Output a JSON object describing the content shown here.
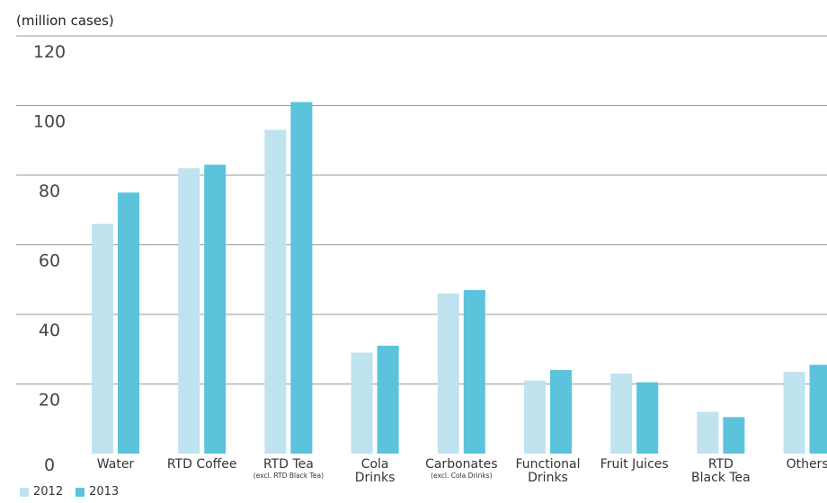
{
  "unit_label": "(million cases)",
  "colors": {
    "s2012": "#bfe3ef",
    "s2013": "#5bc3dc",
    "grid": "#9a9a9a"
  },
  "chart_data": {
    "type": "bar",
    "ylabel": "(million cases)",
    "ylim": [
      0,
      120
    ],
    "yticks": [
      0,
      20,
      40,
      60,
      80,
      100,
      120
    ],
    "grid": true,
    "legend": "bottom-left",
    "categories": [
      {
        "label": "Water",
        "sub": ""
      },
      {
        "label": "RTD Coffee",
        "sub": ""
      },
      {
        "label": "RTD Tea",
        "sub": "(excl. RTD Black Tea)"
      },
      {
        "label": "Cola\nDrinks",
        "sub": ""
      },
      {
        "label": "Carbonates",
        "sub": "(excl. Cola Drinks)"
      },
      {
        "label": "Functional\nDrinks",
        "sub": ""
      },
      {
        "label": "Fruit Juices",
        "sub": ""
      },
      {
        "label": "RTD\nBlack Tea",
        "sub": ""
      },
      {
        "label": "Others",
        "sub": ""
      }
    ],
    "series": [
      {
        "name": "2012",
        "values": [
          66,
          82,
          93,
          29,
          46,
          21,
          23,
          12,
          23.5
        ]
      },
      {
        "name": "2013",
        "values": [
          75,
          83,
          101,
          31,
          47,
          24,
          20.5,
          10.5,
          25.5
        ]
      }
    ]
  }
}
